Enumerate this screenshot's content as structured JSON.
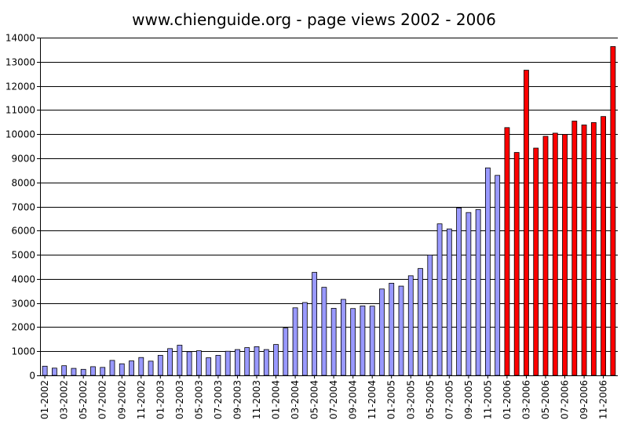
{
  "chart_data": {
    "type": "bar",
    "title": "www.chienguide.org - page views 2002 - 2006",
    "xlabel": "",
    "ylabel": "",
    "ylim": [
      0,
      14000
    ],
    "yticks": [
      0,
      1000,
      2000,
      3000,
      4000,
      5000,
      6000,
      7000,
      8000,
      9000,
      10000,
      11000,
      12000,
      13000,
      14000
    ],
    "grid": true,
    "legend": "none",
    "colors": {
      "before_2006": "#9999ff",
      "year_2006": "#ff0000",
      "outline": "#000000",
      "grid": "#000000"
    },
    "categories": [
      "01-2002",
      "02-2002",
      "03-2002",
      "04-2002",
      "05-2002",
      "06-2002",
      "07-2002",
      "08-2002",
      "09-2002",
      "10-2002",
      "11-2002",
      "12-2002",
      "01-2003",
      "02-2003",
      "03-2003",
      "04-2003",
      "05-2003",
      "06-2003",
      "07-2003",
      "08-2003",
      "09-2003",
      "10-2003",
      "11-2003",
      "12-2003",
      "01-2004",
      "02-2004",
      "03-2004",
      "04-2004",
      "05-2004",
      "06-2004",
      "07-2004",
      "08-2004",
      "09-2004",
      "10-2004",
      "11-2004",
      "12-2004",
      "01-2005",
      "02-2005",
      "03-2005",
      "04-2005",
      "05-2005",
      "06-2005",
      "07-2005",
      "08-2005",
      "09-2005",
      "10-2005",
      "11-2005",
      "12-2005",
      "01-2006",
      "02-2006",
      "03-2006",
      "04-2006",
      "05-2006",
      "06-2006",
      "07-2006",
      "08-2006",
      "09-2006",
      "10-2006",
      "11-2006",
      "12-2006"
    ],
    "tick_labels": [
      "01-2002",
      "03-2002",
      "05-2002",
      "07-2002",
      "09-2002",
      "11-2002",
      "01-2003",
      "03-2003",
      "05-2003",
      "07-2003",
      "09-2003",
      "11-2003",
      "01-2004",
      "03-2004",
      "05-2004",
      "07-2004",
      "09-2004",
      "11-2004",
      "01-2005",
      "03-2005",
      "05-2005",
      "07-2005",
      "09-2005",
      "11-2005",
      "01-2006",
      "03-2006",
      "05-2006",
      "07-2006",
      "09-2006",
      "11-2006"
    ],
    "values": [
      380,
      300,
      400,
      290,
      250,
      360,
      330,
      620,
      480,
      600,
      740,
      590,
      830,
      1110,
      1250,
      980,
      1020,
      730,
      830,
      1000,
      1070,
      1150,
      1190,
      1070,
      1280,
      1960,
      2800,
      3020,
      4270,
      3650,
      2780,
      3150,
      2770,
      2880,
      2870,
      3580,
      3820,
      3700,
      4130,
      4430,
      4990,
      6280,
      6070,
      6940,
      6750,
      6870,
      8600,
      8290,
      10270,
      9240,
      12650,
      9420,
      9910,
      10040,
      9990,
      10540,
      10380,
      10480,
      10730,
      13630
    ]
  }
}
